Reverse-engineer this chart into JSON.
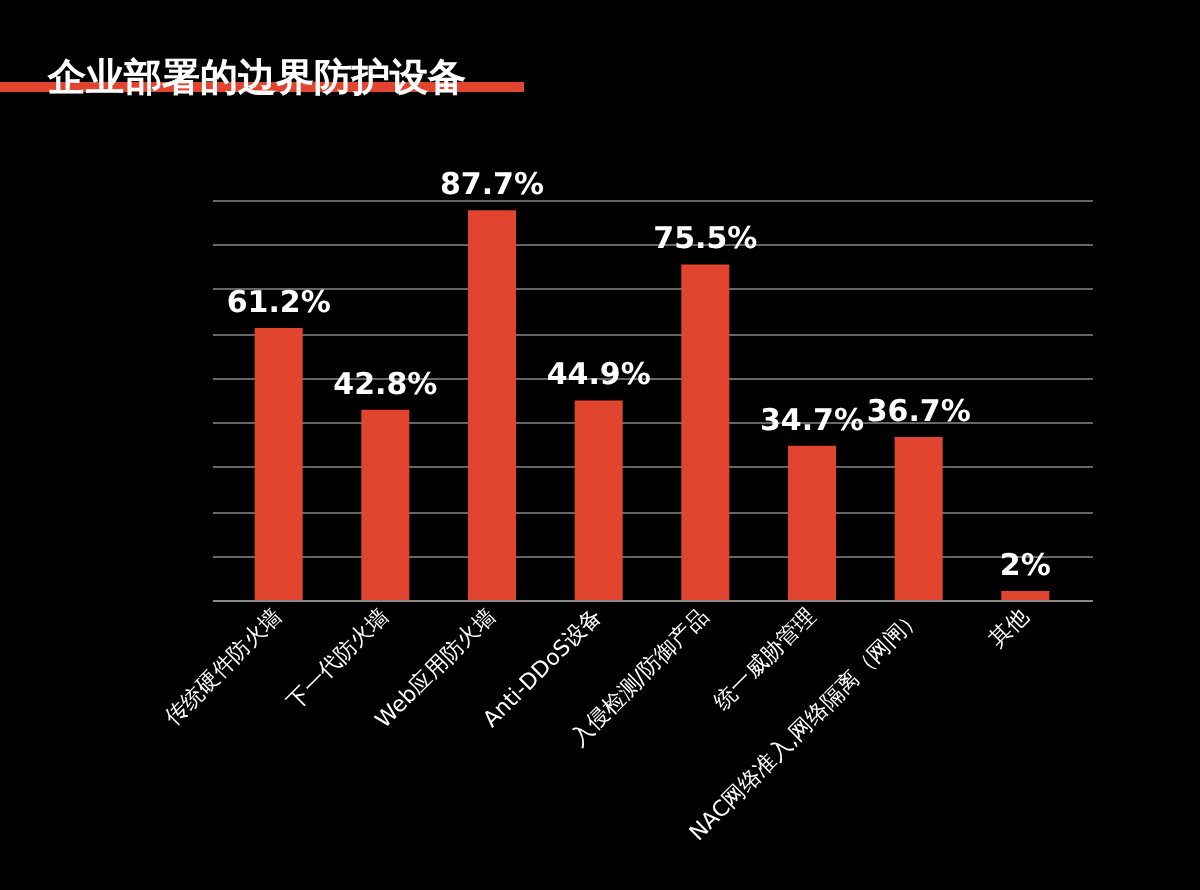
{
  "chart_data": {
    "type": "bar",
    "title": "企业部署的边界防护设备",
    "categories": [
      "传统硬件防火墙",
      "下一代防火墙",
      "Web应用防火墙",
      "Anti-DDoS设备",
      "入侵检测/防御产品",
      "统一威胁管理",
      "NAC网络准入,网络隔离（网闸）",
      "其他"
    ],
    "values": [
      61.2,
      42.8,
      87.7,
      44.9,
      75.5,
      34.7,
      36.7,
      2
    ],
    "value_labels": [
      "61.2%",
      "42.8%",
      "87.7%",
      "44.9%",
      "75.5%",
      "34.7%",
      "36.7%",
      "2%"
    ],
    "color": "#e2452f",
    "grid": "y",
    "tick_labels": "x"
  }
}
